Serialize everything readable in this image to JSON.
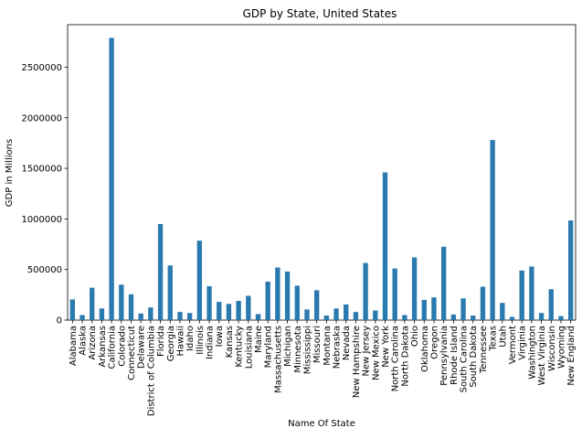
{
  "chart_data": {
    "type": "bar",
    "title": "GDP by State, United States",
    "xlabel": "Name Of State",
    "ylabel": "GDP in Millions",
    "ylim": [
      0,
      2920000
    ],
    "yticks": [
      0,
      500000,
      1000000,
      1500000,
      2000000,
      2500000
    ],
    "ytick_labels": [
      "0",
      "500000",
      "1000000",
      "1500000",
      "2000000",
      "2500000"
    ],
    "grid": false,
    "legend": "none",
    "bar_color": "#2a7ab0",
    "categories": [
      "Alabama",
      "Alaska",
      "Arizona",
      "Arkansas",
      "California",
      "Colorado",
      "Connecticut",
      "Delaware",
      "District of Columbia",
      "Florida",
      "Georgia",
      "Hawaii",
      "Idaho",
      "Illinois",
      "Indiana",
      "Iowa",
      "Kansas",
      "Kentucky",
      "Louisiana",
      "Maine",
      "Maryland",
      "Massachusetts",
      "Michigan",
      "Minnesota",
      "Mississippi",
      "Missouri",
      "Montana",
      "Nebraska",
      "Nevada",
      "New Hampshire",
      "New Jersey",
      "New Mexico",
      "New York",
      "North Carolina",
      "North Dakota",
      "Ohio",
      "Oklahoma",
      "Oregon",
      "Pennsylvania",
      "Rhode Island",
      "South Carolina",
      "South Dakota",
      "Tennessee",
      "Texas",
      "Utah",
      "Vermont",
      "Virginia",
      "Washington",
      "West Virginia",
      "Wisconsin",
      "Wyoming",
      "New England"
    ],
    "values": [
      205000,
      50000,
      320000,
      115000,
      2790000,
      350000,
      255000,
      65000,
      125000,
      950000,
      540000,
      80000,
      70000,
      785000,
      335000,
      180000,
      160000,
      190000,
      240000,
      60000,
      380000,
      520000,
      480000,
      340000,
      105000,
      295000,
      45000,
      115000,
      155000,
      80000,
      565000,
      95000,
      1460000,
      510000,
      50000,
      620000,
      200000,
      225000,
      725000,
      55000,
      215000,
      45000,
      330000,
      1780000,
      170000,
      32000,
      490000,
      530000,
      70000,
      305000,
      40000,
      985000
    ]
  }
}
